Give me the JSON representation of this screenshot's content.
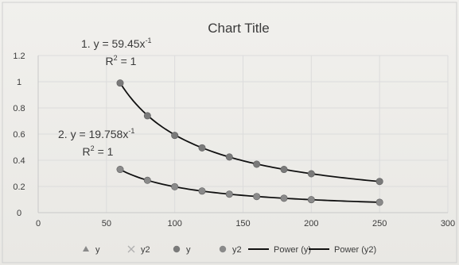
{
  "chart_data": {
    "type": "scatter",
    "title": "Chart Title",
    "xlabel": "",
    "ylabel": "",
    "xlim": [
      0,
      300
    ],
    "ylim": [
      0,
      1.2
    ],
    "x_ticks": [
      0,
      50,
      100,
      150,
      200,
      250,
      300
    ],
    "y_ticks": [
      0,
      0.2,
      0.4,
      0.6,
      0.8,
      1,
      1.2
    ],
    "x_tick_labels": [
      "0",
      "50",
      "100",
      "150",
      "200",
      "250",
      "300"
    ],
    "y_tick_labels": [
      "0",
      "0.2",
      "0.4",
      "0.6",
      "0.8",
      "1",
      "1.2"
    ],
    "grid": true,
    "legend_position": "bottom",
    "series": [
      {
        "name": "y",
        "color": "#7a7a7a",
        "marker": "circle",
        "x": [
          60,
          80,
          100,
          120,
          140,
          160,
          180,
          200,
          250
        ],
        "y": [
          0.99,
          0.74,
          0.59,
          0.495,
          0.425,
          0.37,
          0.33,
          0.297,
          0.238
        ]
      },
      {
        "name": "y2",
        "color": "#8a8a8a",
        "marker": "circle",
        "x": [
          60,
          80,
          100,
          120,
          140,
          160,
          180,
          200,
          250
        ],
        "y": [
          0.33,
          0.247,
          0.198,
          0.165,
          0.141,
          0.123,
          0.11,
          0.099,
          0.079
        ]
      }
    ],
    "trendlines": [
      {
        "name": "Power (y)",
        "series": "y",
        "type": "power",
        "coefficient": 59.45,
        "exponent": -1,
        "x_range": [
          60,
          250
        ],
        "color": "#111111",
        "equation_prefix": "1. y = 59.45x",
        "equation_exponent": "-1",
        "r2_label": "R",
        "r2_exponent": "2",
        "r2_value": " = 1"
      },
      {
        "name": "Power (y2)",
        "series": "y2",
        "type": "power",
        "coefficient": 19.758,
        "exponent": -1,
        "x_range": [
          60,
          250
        ],
        "color": "#111111",
        "equation_prefix": "2. y = 19.758x",
        "equation_exponent": "-1",
        "r2_label": "R",
        "r2_exponent": "2",
        "r2_value": " = 1"
      }
    ],
    "legend": [
      {
        "label": "y",
        "marker": "triangle",
        "color": "#8a8a8a"
      },
      {
        "label": "y2",
        "marker": "cross",
        "color": "#b0b0b0"
      },
      {
        "label": "y",
        "marker": "circle",
        "color": "#7a7a7a"
      },
      {
        "label": "y2",
        "marker": "circle",
        "color": "#8a8a8a"
      },
      {
        "label": "Power (y)",
        "marker": "line",
        "color": "#111111"
      },
      {
        "label": "Power (y2)",
        "marker": "line",
        "color": "#111111"
      }
    ]
  }
}
